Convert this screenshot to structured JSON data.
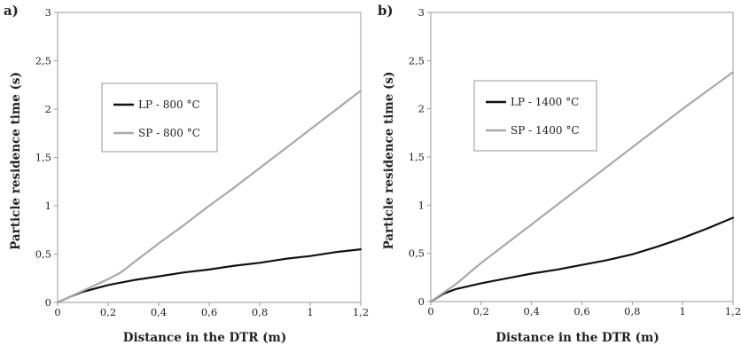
{
  "chart_data": [
    {
      "type": "line",
      "panel_label": "a)",
      "xlabel": "Distance in the DTR (m)",
      "ylabel": "Particle residence time (s)",
      "xlim": [
        0,
        1.2
      ],
      "ylim": [
        0,
        3
      ],
      "x_ticks": [
        "0",
        "0,2",
        "0,4",
        "0,6",
        "0,8",
        "1",
        "1,2"
      ],
      "y_ticks": [
        "0",
        "0,5",
        "1",
        "1,5",
        "2",
        "2,5",
        "3"
      ],
      "grid": false,
      "legend_position": "left",
      "series": [
        {
          "name": "LP - 800 °C",
          "color": "#111111",
          "x": [
            0,
            0.05,
            0.1,
            0.2,
            0.3,
            0.4,
            0.5,
            0.6,
            0.7,
            0.8,
            0.9,
            1.0,
            1.1,
            1.2
          ],
          "y": [
            0,
            0.06,
            0.11,
            0.18,
            0.23,
            0.27,
            0.31,
            0.34,
            0.38,
            0.41,
            0.45,
            0.48,
            0.52,
            0.55
          ]
        },
        {
          "name": "SP - 800 °C",
          "color": "#a9a9a9",
          "x": [
            0,
            0.1,
            0.2,
            0.25,
            0.3,
            0.4,
            0.5,
            0.6,
            0.7,
            0.8,
            0.9,
            1.0,
            1.1,
            1.2
          ],
          "y": [
            0,
            0.12,
            0.24,
            0.31,
            0.41,
            0.61,
            0.8,
            1.0,
            1.19,
            1.39,
            1.59,
            1.79,
            1.99,
            2.19
          ]
        }
      ]
    },
    {
      "type": "line",
      "panel_label": "b)",
      "xlabel": "Distance in the DTR (m)",
      "ylabel": "Particle residence time (s)",
      "xlim": [
        0,
        1.2
      ],
      "ylim": [
        0,
        3
      ],
      "x_ticks": [
        "0",
        "0,2",
        "0,4",
        "0,6",
        "0,8",
        "1",
        "1,2"
      ],
      "y_ticks": [
        "0",
        "0,5",
        "1",
        "1,5",
        "2",
        "2,5",
        "3"
      ],
      "grid": false,
      "legend_position": "left",
      "series": [
        {
          "name": "LP - 1400 °C",
          "color": "#111111",
          "x": [
            0,
            0.05,
            0.1,
            0.2,
            0.3,
            0.4,
            0.5,
            0.6,
            0.7,
            0.8,
            0.9,
            1.0,
            1.1,
            1.2
          ],
          "y": [
            0,
            0.08,
            0.13,
            0.19,
            0.24,
            0.29,
            0.33,
            0.38,
            0.43,
            0.49,
            0.57,
            0.66,
            0.76,
            0.87
          ]
        },
        {
          "name": "SP - 1400 °C",
          "color": "#a9a9a9",
          "x": [
            0,
            0.1,
            0.2,
            0.3,
            0.4,
            0.5,
            0.6,
            0.7,
            0.8,
            0.9,
            1.0,
            1.1,
            1.2
          ],
          "y": [
            0,
            0.18,
            0.4,
            0.6,
            0.8,
            1.0,
            1.2,
            1.4,
            1.6,
            1.8,
            2.0,
            2.19,
            2.38
          ]
        }
      ]
    }
  ]
}
